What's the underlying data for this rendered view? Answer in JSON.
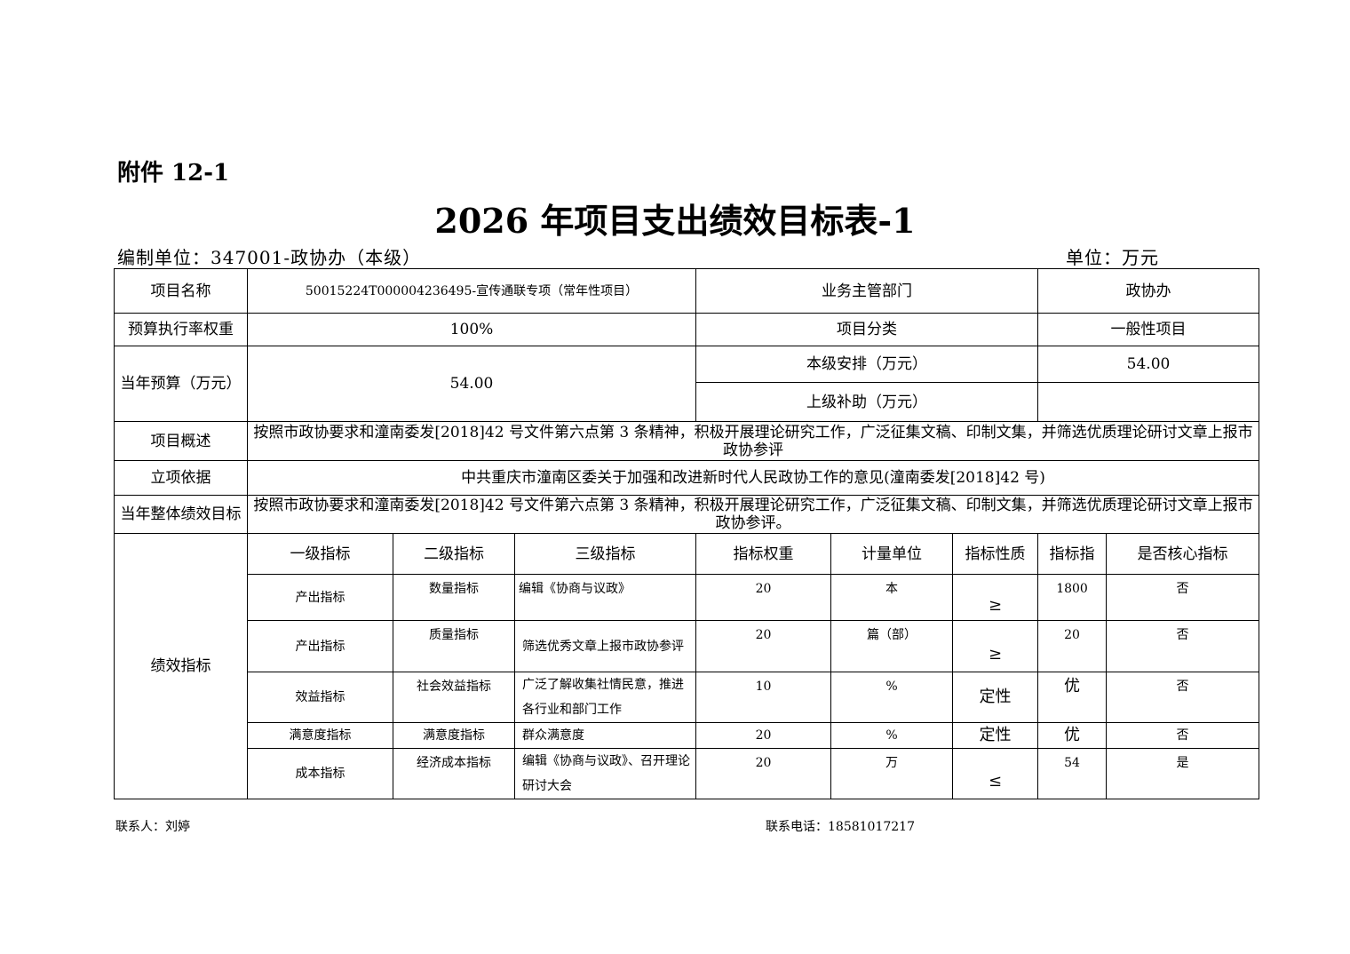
{
  "attachment": "附件 12-1",
  "title": "2026 年项目支出绩效目标表-1",
  "org": "编制单位：347001-政协办（本级）",
  "unit": "单位：万元",
  "info": {
    "name_label": "项目名称",
    "name_value": "50015224T000004236495-宣传通联专项（常年性项目）",
    "dept_label": "业务主管部门",
    "dept_value": "政协办",
    "rate_label": "预算执行率权重",
    "rate_value": "100%",
    "class_label": "项目分类",
    "class_value": "一般性项目",
    "budget_label": "当年预算（万元）",
    "budget_value": "54.00",
    "local_label": "本级安排（万元）",
    "local_value": "54.00",
    "upper_label": "上级补助（万元）",
    "upper_value": "",
    "summary_label": "项目概述",
    "summary_value": "按照市政协要求和潼南委发[2018]42 号文件第六点第 3 条精神，积极开展理论研究工作，广泛征集文稿、印制文集，并筛选优质理论研讨文章上报市政协参评",
    "basis_label": "立项依据",
    "basis_value": "中共重庆市潼南区委关于加强和改进新时代人民政协工作的意见(潼南委发[2018]42 号)",
    "goal_label": "当年整体绩效目标",
    "goal_value": "按照市政协要求和潼南委发[2018]42 号文件第六点第 3 条精神，积极开展理论研究工作，广泛征集文稿、印制文集，并筛选优质理论研讨文章上报市政协参评。"
  },
  "indicators": {
    "label": "绩效指标",
    "headers": [
      "一级指标",
      "二级指标",
      "三级指标",
      "指标权重",
      "计量单位",
      "指标性质",
      "指标指",
      "是否核心指标"
    ],
    "rows": [
      [
        "产出指标",
        "数量指标",
        "编辑《协商与议政》",
        "20",
        "本",
        "≥",
        "1800",
        "否"
      ],
      [
        "产出指标",
        "质量指标",
        "筛选优秀文章上报市政协参评",
        "20",
        "篇（部）",
        "≥",
        "20",
        "否"
      ],
      [
        "效益指标",
        "社会效益指标",
        "广泛了解收集社情民意，推进各行业和部门工作",
        "10",
        "%",
        "定性",
        "优",
        "否"
      ],
      [
        "满意度指标",
        "满意度指标",
        "群众满意度",
        "20",
        "%",
        "定性",
        "优",
        "否"
      ],
      [
        "成本指标",
        "经济成本指标",
        "编辑《协商与议政》、召开理论研讨大会",
        "20",
        "万",
        "≤",
        "54",
        "是"
      ]
    ]
  },
  "footer": {
    "contact": "联系人：刘婷",
    "phone": "联系电话：18581017217"
  }
}
